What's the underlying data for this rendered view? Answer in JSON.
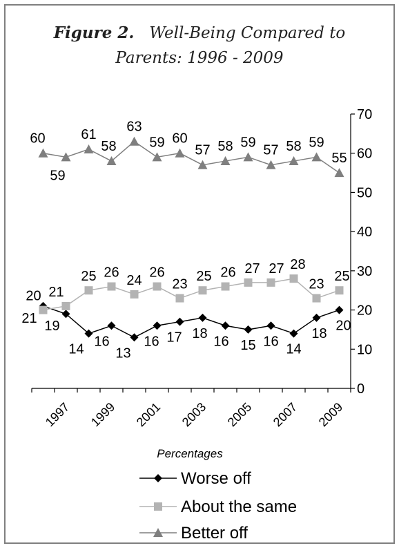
{
  "figure": {
    "label": "Figure 2.",
    "title_line1": "Well-Being Compared to",
    "title_line2": "Parents:  1996 - 2009"
  },
  "chart_data": {
    "type": "line",
    "x": [
      1996,
      1997,
      1998,
      1999,
      2000,
      2001,
      2002,
      2003,
      2004,
      2005,
      2006,
      2007,
      2008,
      2009
    ],
    "x_tick_labels": [
      "1997",
      "1999",
      "2001",
      "2003",
      "2005",
      "2007",
      "2009"
    ],
    "x_tick_positions": [
      1997,
      1999,
      2001,
      2003,
      2005,
      2007,
      2009
    ],
    "xlabel": "Percentages",
    "ylim": [
      0,
      70
    ],
    "y_ticks": [
      0,
      10,
      20,
      30,
      40,
      50,
      60,
      70
    ],
    "y_axis_side": "right",
    "legend_position": "bottom",
    "series": [
      {
        "name": "Worse off",
        "color": "#000000",
        "marker": "diamond",
        "values": [
          21,
          19,
          14,
          16,
          13,
          16,
          17,
          18,
          16,
          15,
          16,
          14,
          18,
          20
        ]
      },
      {
        "name": "About the same",
        "color": "#b3b3b3",
        "marker": "square",
        "values": [
          20,
          21,
          25,
          26,
          24,
          26,
          23,
          25,
          26,
          27,
          27,
          28,
          23,
          25
        ]
      },
      {
        "name": "Better off",
        "color": "#7f7f7f",
        "marker": "triangle",
        "values": [
          60,
          59,
          61,
          58,
          63,
          59,
          60,
          57,
          58,
          59,
          57,
          58,
          59,
          55
        ]
      }
    ]
  }
}
